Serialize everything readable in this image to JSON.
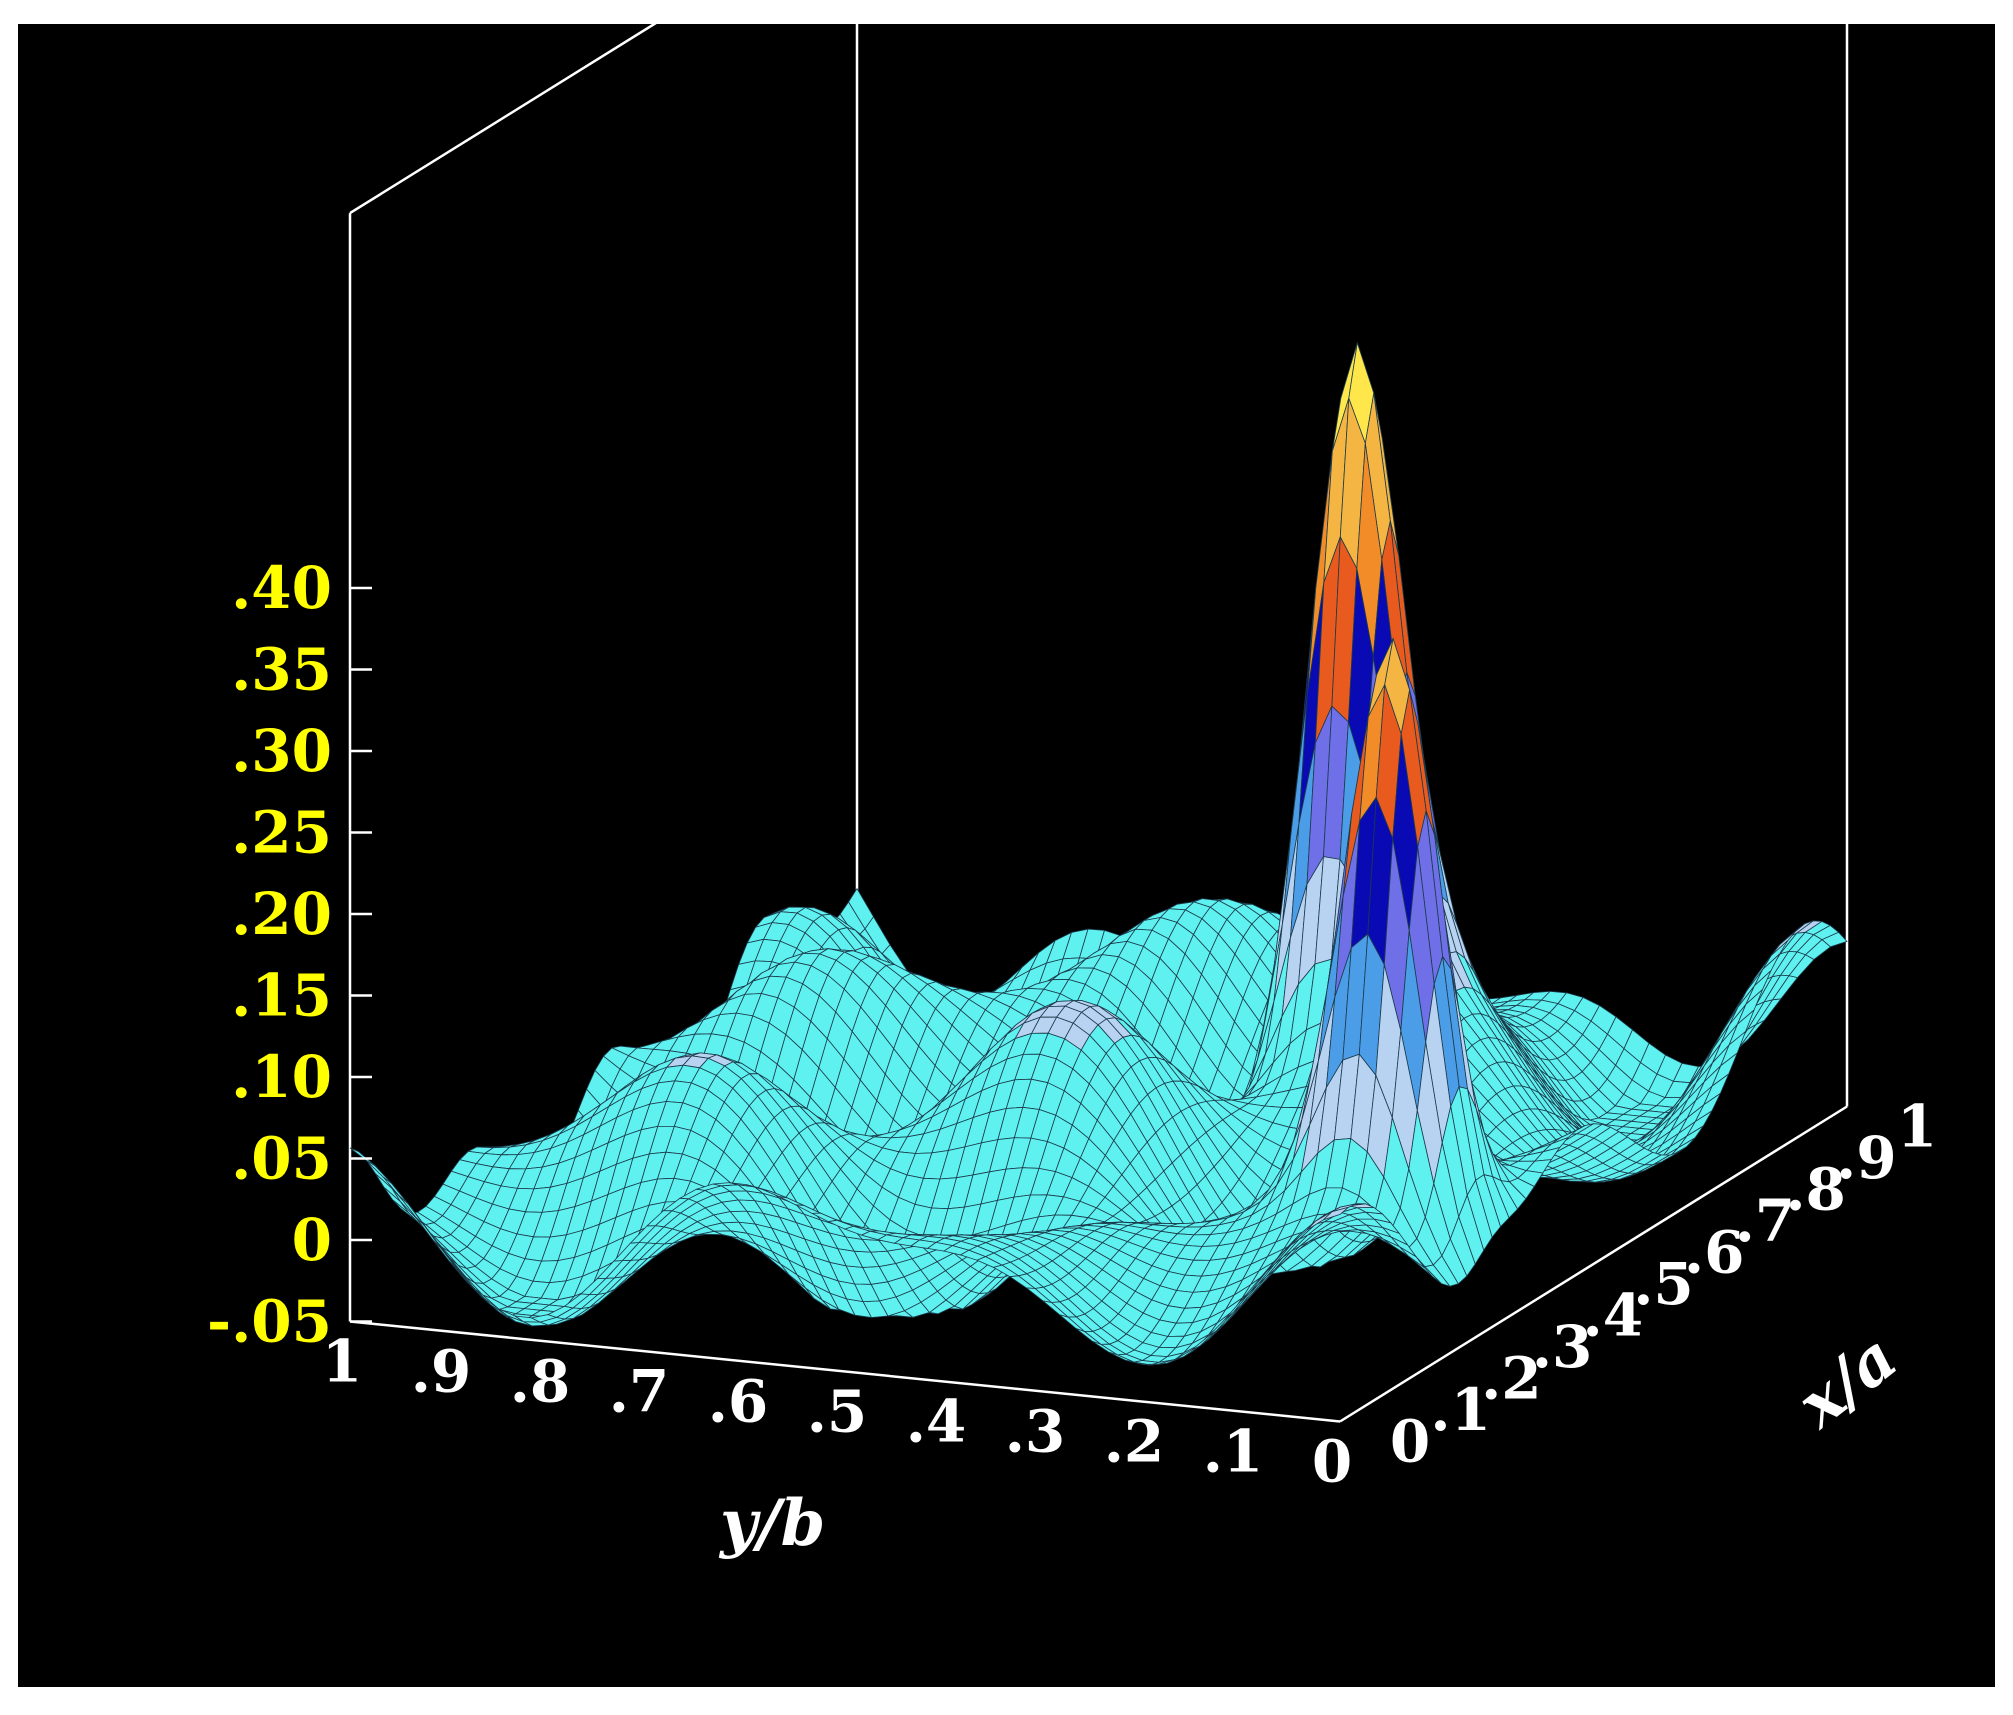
{
  "chart_data": {
    "type": "surface3d",
    "title": "",
    "xlabel": "x/a",
    "ylabel": "y/b",
    "zlabel": "",
    "xlim": [
      0,
      1
    ],
    "ylim": [
      0,
      1
    ],
    "zlim": [
      -0.05,
      0.4
    ],
    "x_ticks": [
      "0",
      ".1",
      ".2",
      ".3",
      ".4",
      ".5",
      ".6",
      ".7",
      ".8",
      ".9",
      "1"
    ],
    "y_ticks": [
      "0",
      ".1",
      ".2",
      ".3",
      ".4",
      ".5",
      ".6",
      ".7",
      ".8",
      ".9",
      "1"
    ],
    "z_ticks": [
      "-.05",
      "0",
      ".05",
      ".10",
      ".15",
      ".20",
      ".25",
      ".30",
      ".35",
      ".40"
    ],
    "peaks": [
      {
        "x": 0.75,
        "y": 0.37,
        "z": 0.42
      },
      {
        "x": 0.3,
        "y": 0.1,
        "z": 0.34
      }
    ],
    "colormap": [
      "#5ff0f0",
      "#b8d2f2",
      "#4b9de8",
      "#6f6fe8",
      "#0a0ab4",
      "#e85a1e",
      "#f28c28",
      "#f5b542",
      "#ffe64a"
    ],
    "background": "#000000",
    "grid": false
  }
}
